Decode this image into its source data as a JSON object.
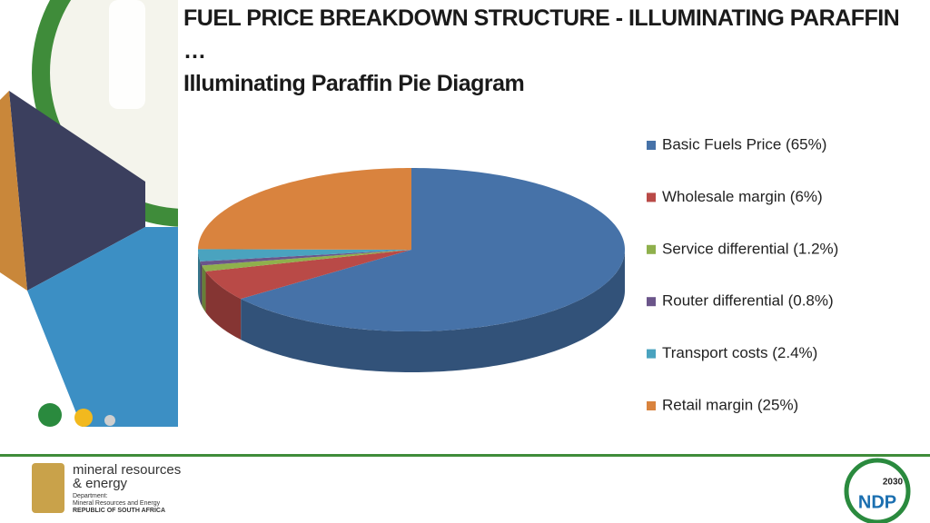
{
  "chart_data": {
    "type": "pie",
    "title": "FUEL PRICE BREAKDOWN STRUCTURE - ILLUMINATING PARAFFIN …",
    "subtitle": "Illuminating Paraffin Pie Diagram",
    "categories": [
      "Basic Fuels Price (65%)",
      "Wholesale margin (6%)",
      "Service differential (1.2%)",
      "Router differential (0.8%)",
      "Transport costs (2.4%)",
      "Retail margin (25%)"
    ],
    "values": [
      65,
      6,
      1.2,
      0.8,
      2.4,
      25
    ],
    "colors": [
      "#4672a8",
      "#b94a47",
      "#8fb04c",
      "#6b558a",
      "#4aa3bf",
      "#d9833e"
    ],
    "legend": "right"
  },
  "footer": {
    "org_line1": "mineral resources",
    "org_line2": "& energy",
    "dept_label": "Department:",
    "dept_name": "Mineral Resources and Energy",
    "country": "REPUBLIC OF SOUTH AFRICA",
    "ndp_year": "2030",
    "ndp": "NDP"
  }
}
